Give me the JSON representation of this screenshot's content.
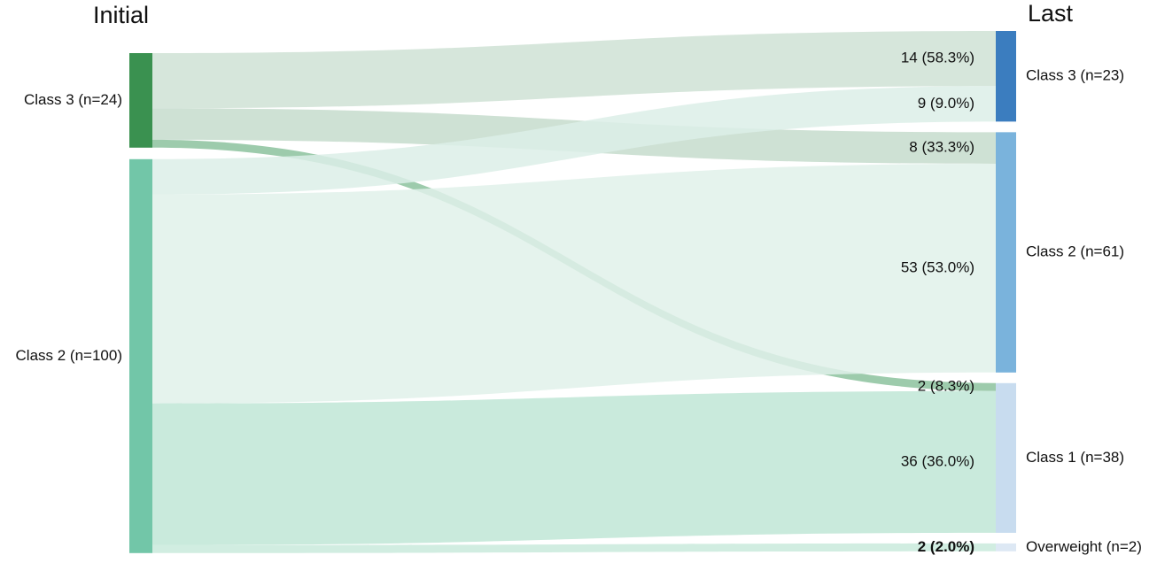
{
  "chart_data": {
    "type": "sankey",
    "column_titles": [
      "Initial",
      "Last"
    ],
    "left_nodes": {
      "labels": [
        "Class 3 (n=24)",
        "Class 2 (n=100)"
      ],
      "colors": [
        "#3a9150",
        "#72c6a8"
      ]
    },
    "right_nodes": {
      "labels": [
        "Class 3 (n=23)",
        "Class 2 (n=61)",
        "Class 1 (n=38)",
        "Overweight (n=2)"
      ],
      "colors": [
        "#3b7dbf",
        "#7ab3dc",
        "#c8dcef",
        "#dde8f4"
      ]
    },
    "links": {
      "source": [
        "Class 3 (n=24)",
        "Class 3 (n=24)",
        "Class 3 (n=24)",
        "Class 2 (n=100)",
        "Class 2 (n=100)",
        "Class 2 (n=100)",
        "Class 2 (n=100)"
      ],
      "target": [
        "Class 3 (n=23)",
        "Class 2 (n=61)",
        "Class 1 (n=38)",
        "Class 3 (n=23)",
        "Class 2 (n=61)",
        "Class 1 (n=38)",
        "Overweight (n=2)"
      ],
      "values": [
        14,
        8,
        2,
        9,
        53,
        36,
        2
      ],
      "value_labels": [
        "14 (58.3%)",
        "8 (33.3%)",
        "2 (8.3%)",
        "9 (9.0%)",
        "53 (53.0%)",
        "36 (36.0%)",
        "2 (2.0%)"
      ],
      "colors": [
        "#cfe2d5",
        "#c6dccd",
        "#8cc29d",
        "#dcefe7",
        "#e0f1ea",
        "#bfe6d6",
        "#c9eadc"
      ]
    }
  }
}
